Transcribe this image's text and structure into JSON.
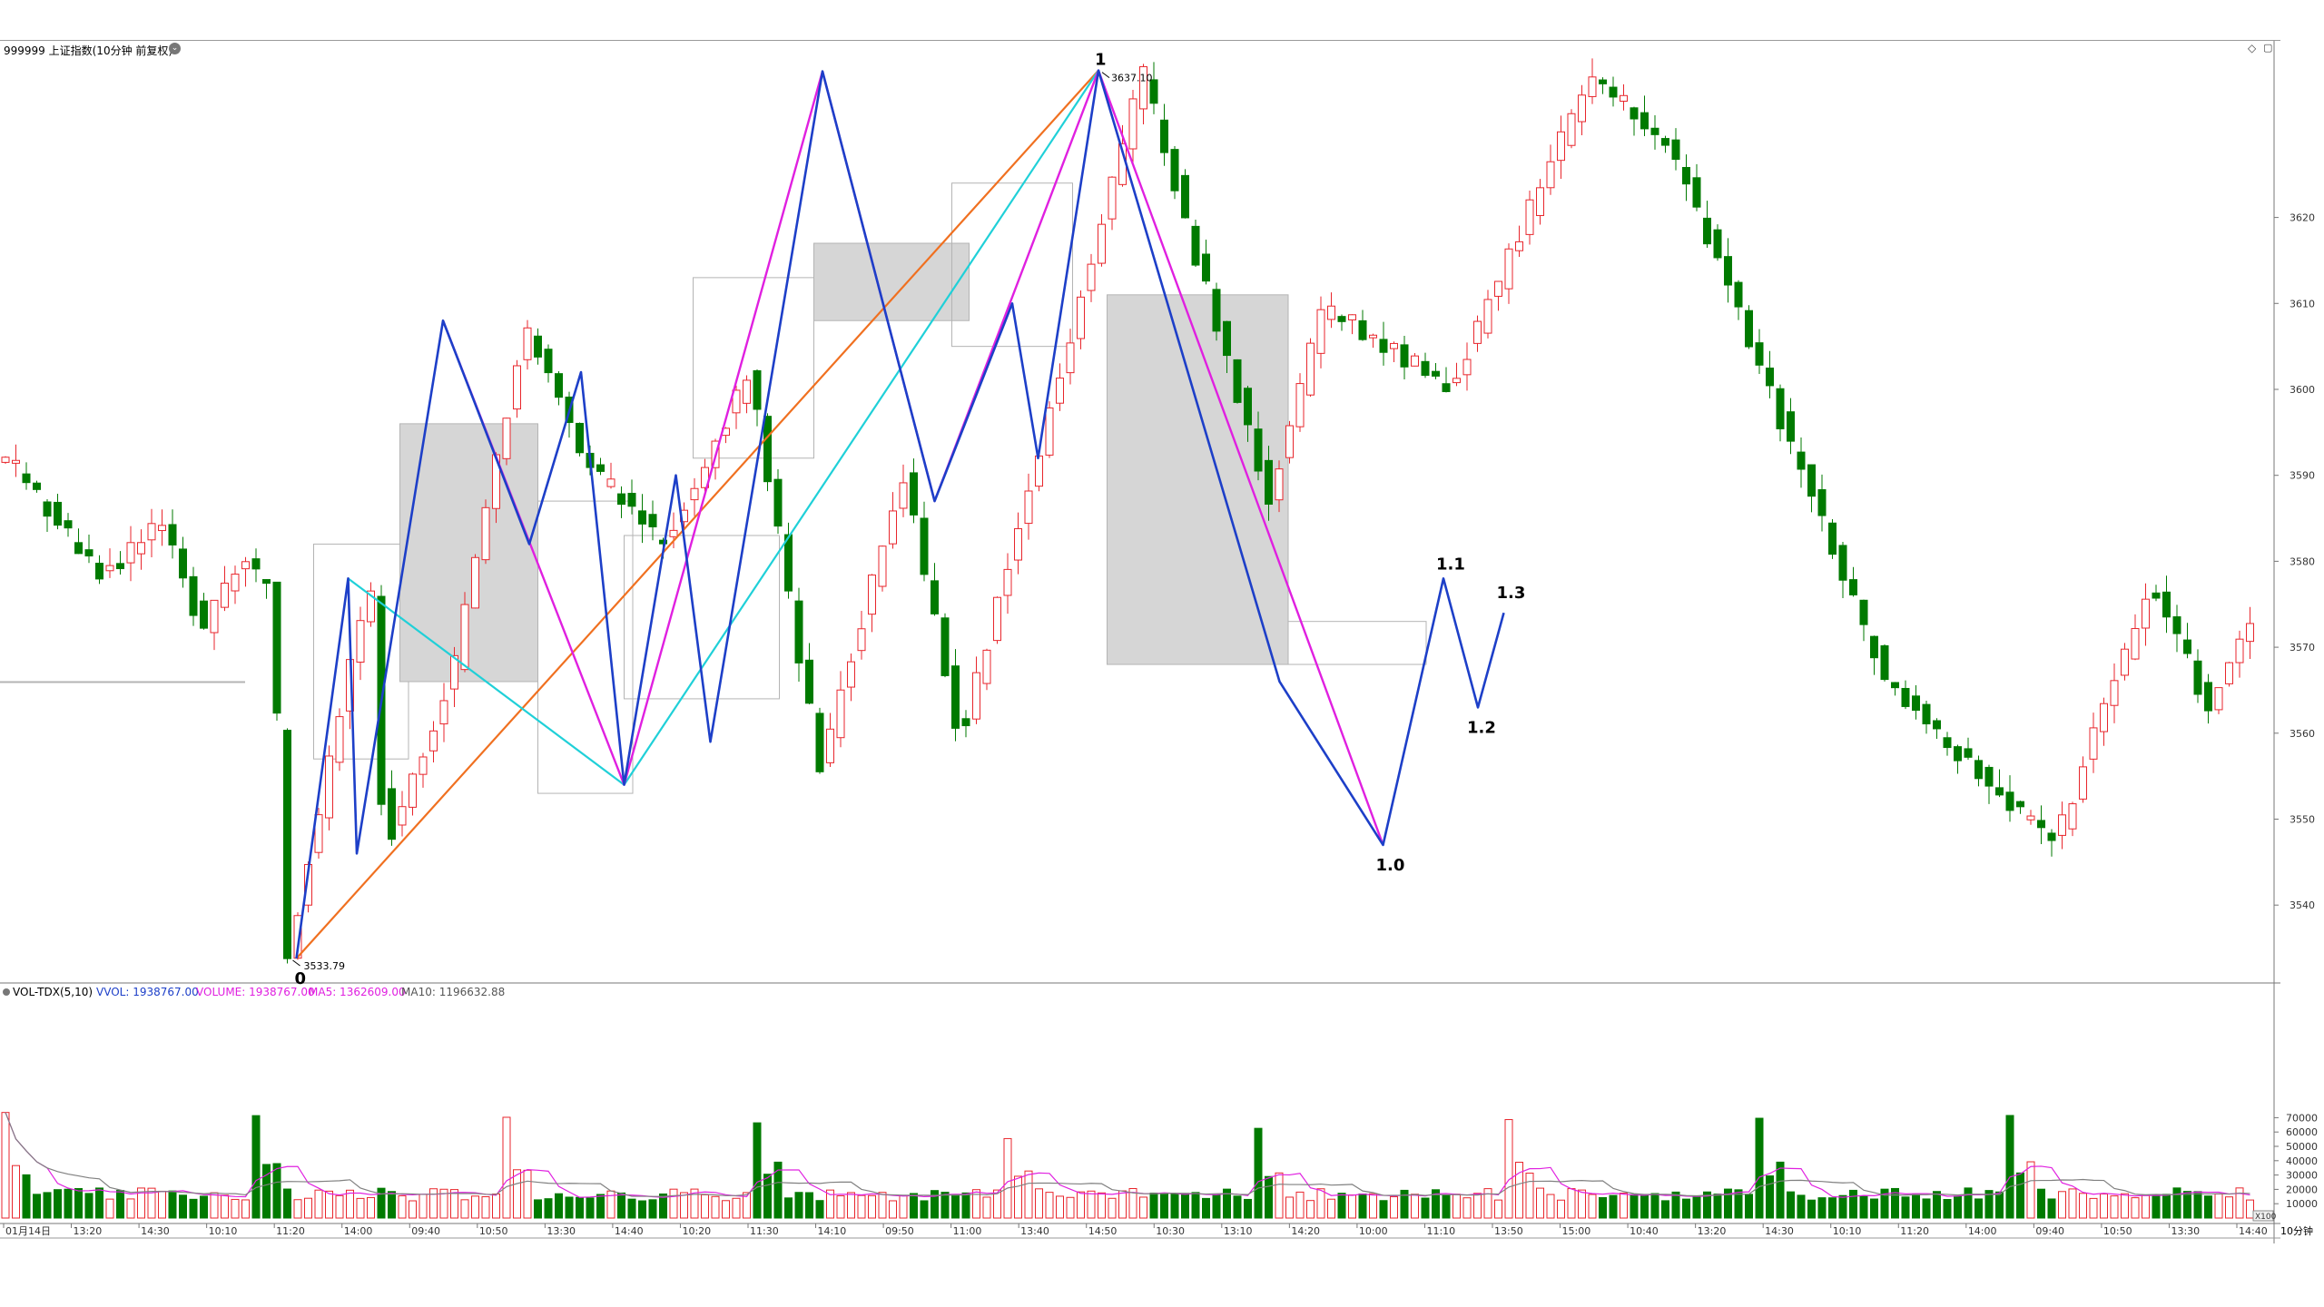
{
  "title": "999999 上证指数(10分钟 前复权)",
  "corner_icon": "diamond-settings-icon",
  "volume_header": {
    "name": "VOL-TDX(5,10)",
    "vvol": "VVOL: 1938767.00",
    "volume": "VOLUME: 1938767.00",
    "ma5": "MA5: 1362609.00",
    "ma10": "MA10: 1196632.88"
  },
  "colors": {
    "up": "#e8262c",
    "down": "#007a00",
    "zigzag_blue": "#1d3fc8",
    "zigzag_magenta": "#e020e0",
    "line_orange": "#f07020",
    "line_cyan": "#20d0d8",
    "ma5": "#e020e0",
    "ma10": "#808080",
    "box_fill": "#d6d6d6",
    "box_outline": "#b4b4b4"
  },
  "annotations": {
    "high_value": "3637.10",
    "low_value": "3533.79"
  },
  "wave_labels": [
    "0",
    "1",
    "1.0",
    "1.1",
    "1.2",
    "1.3"
  ],
  "x_axis": {
    "labels": [
      "01月14日",
      "13:20",
      "14:30",
      "10:10",
      "11:20",
      "14:00",
      "09:40",
      "10:50",
      "13:30",
      "14:40",
      "10:20",
      "11:30",
      "14:10",
      "09:50",
      "11:00",
      "13:40",
      "14:50",
      "10:30",
      "13:10",
      "14:20",
      "10:00",
      "11:10",
      "13:50",
      "15:00",
      "10:40",
      "13:20",
      "14:30",
      "10:10",
      "11:20",
      "14:00",
      "09:40",
      "10:50",
      "13:30",
      "14:40"
    ],
    "period_label": "10分钟",
    "vol_unit": "X100"
  },
  "chart_data": [
    {
      "type": "candlestick",
      "title": "999999 上证指数(10分钟 前复权)",
      "ylim": [
        3530,
        3640
      ],
      "y_ticks": [
        3540,
        3550,
        3560,
        3570,
        3580,
        3590,
        3600,
        3610,
        3620
      ],
      "candle_count": 216,
      "high": 3637.1,
      "low": 3533.79
    },
    {
      "type": "bar",
      "title": "VOL-TDX(5,10)",
      "ylim": [
        0,
        80000
      ],
      "y_ticks": [
        10000,
        20000,
        30000,
        40000,
        50000,
        60000,
        70000
      ],
      "series": [
        {
          "name": "VOLUME"
        },
        {
          "name": "MA5"
        },
        {
          "name": "MA10"
        }
      ]
    }
  ]
}
